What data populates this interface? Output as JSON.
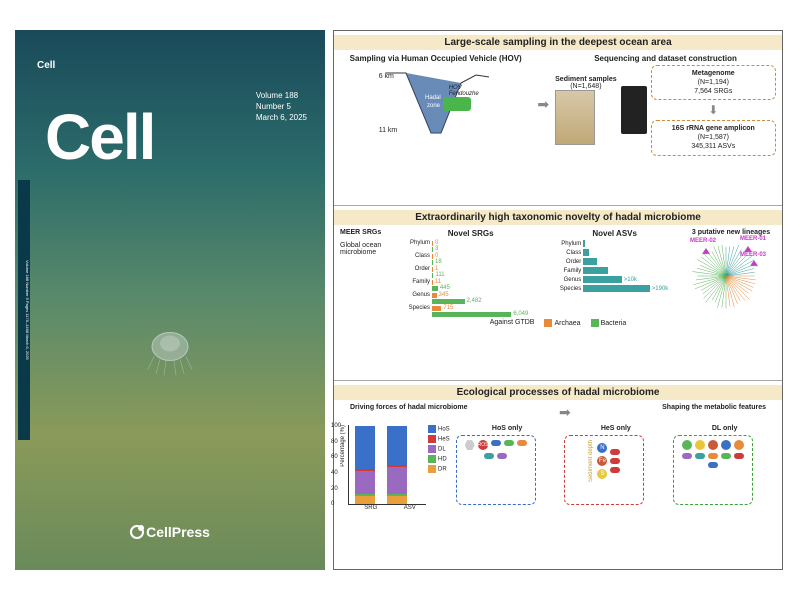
{
  "cover": {
    "brand_small": "Cell",
    "volume": "Volume 188",
    "number": "Number 5",
    "date": "March 6, 2025",
    "logo": "Cell",
    "publisher": "CellPress",
    "spine": "Volume 188 Number 5 Pages 1175–1468 March 6, 2025",
    "bg_top": "#1a4a5a",
    "bg_bottom": "#6a8a5a",
    "jelly_color": "#b8c8c0"
  },
  "section1": {
    "title": "Large-scale sampling in the deepest ocean area",
    "sampling_head": "Sampling via Human Occupied Vehicle (HOV)",
    "sequencing_head": "Sequencing and dataset construction",
    "depth_6": "6 km",
    "depth_11": "11 km",
    "hadal_zone": "Hadal zone",
    "hov_name": "HOV Fendouzhe",
    "sediment_head": "Sediment samples",
    "sediment_n": "(N=1,648)",
    "meta_head": "Metagenome",
    "meta_n": "(N=1,194)",
    "meta_srgs": "7,564 SRGs",
    "amplicon_head": "16S rRNA gene amplicon",
    "amplicon_n": "(N=1,587)",
    "amplicon_asvs": "345,311 ASVs",
    "trench_fill": "#2a5a9a"
  },
  "section2": {
    "title": "Extraordinarily high taxonomic novelty of hadal microbiome",
    "meer_label": "MEER SRGs",
    "global_label": "Global ocean microbiome",
    "srg_title": "Novel SRGs",
    "asv_title": "Novel ASVs",
    "new_lineages": "3 putative new lineages",
    "ranks": [
      "Phylum",
      "Class",
      "Order",
      "Family",
      "Genus",
      "Species"
    ],
    "srg_orange": [
      0,
      0,
      1,
      11,
      345,
      715
    ],
    "srg_green": [
      3,
      18,
      111,
      445,
      2482,
      6049
    ],
    "srg_max": 6100,
    "asv_green": [
      5,
      15,
      40,
      70,
      110,
      190
    ],
    "asv_labels": [
      ">10k",
      ">190k"
    ],
    "asv_max": 200,
    "against": "Against GTDB",
    "leg_archaea": "Archaea",
    "leg_bacteria": "Bacteria",
    "col_archaea": "#e88a3a",
    "col_bacteria": "#5ab55a",
    "col_asv": "#3aa0a0",
    "meer01": "MEER-01",
    "meer02": "MEER-02",
    "meer03": "MEER-03",
    "meer_color": "#c838c8"
  },
  "section3": {
    "title": "Ecological processes of hadal microbiome",
    "driving": "Driving forces of hadal microbiome",
    "shaping": "Shaping the metabolic features",
    "ylab": "Percentage (%)",
    "yticks": [
      0,
      20,
      40,
      60,
      80,
      100
    ],
    "xlabels": [
      "SRG",
      "ASV"
    ],
    "legend": [
      {
        "key": "HoS",
        "color": "#3a70c8"
      },
      {
        "key": "HeS",
        "color": "#d03a3a"
      },
      {
        "key": "DL",
        "color": "#9a6ac0"
      },
      {
        "key": "HD",
        "color": "#5ab55a"
      },
      {
        "key": "DR",
        "color": "#e8a03a"
      }
    ],
    "stacks": {
      "SRG": {
        "DR": 10,
        "HD": 3,
        "DL": 30,
        "HeS": 2,
        "HoS": 55
      },
      "ASV": {
        "DR": 10,
        "HD": 3,
        "DL": 35,
        "HeS": 2,
        "HoS": 50
      }
    },
    "hos_title": "HoS only",
    "hes_title": "HeS only",
    "dl_title": "DL only",
    "ros": "ROS",
    "hes_labels": [
      "N",
      "Fe",
      "S"
    ],
    "hes_arrow": "Sediment depth",
    "hes_colors": {
      "N": "#3a70c8",
      "Fe": "#c85a3a",
      "S": "#e8c83a"
    },
    "dl_colors": [
      "#5ab55a",
      "#e8c83a",
      "#c85a3a",
      "#3a70c8",
      "#e88a3a"
    ]
  }
}
